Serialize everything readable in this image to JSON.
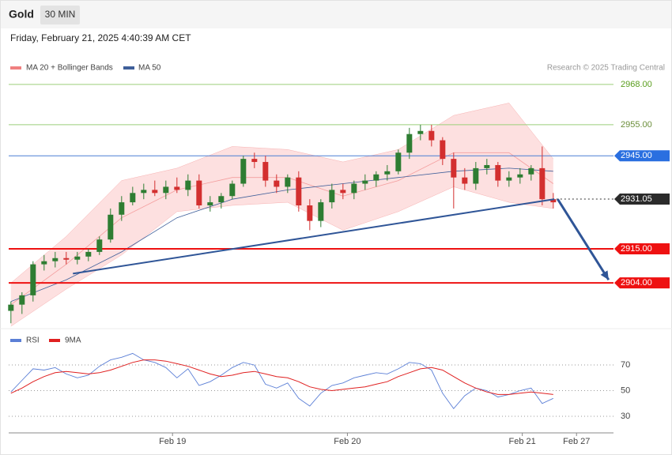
{
  "chart_data": {
    "type": "candlestick",
    "title": "Gold",
    "timeframe": "30 MIN",
    "subtitle": "Friday, February 21, 2025 4:40:39 AM CET",
    "credit": "Research © 2025 Trading Central",
    "xlim": [
      -0.2,
      54.44
    ],
    "xticks": [
      {
        "value": 14.6,
        "label": "Feb 19"
      },
      {
        "value": 30.4,
        "label": "Feb 20"
      },
      {
        "value": 46.2,
        "label": "Feb 21"
      },
      {
        "value": 51.1,
        "label": "Feb 27"
      }
    ],
    "ylim": [
      2890.8,
      2972.3
    ],
    "up_color": "#2e7d32",
    "down_color": "#d32f2f",
    "x": [
      0,
      1,
      2,
      3,
      4,
      5,
      6,
      7,
      8,
      9,
      10,
      11,
      12,
      13,
      14,
      15,
      16,
      17,
      18,
      19,
      20,
      21,
      22,
      23,
      24,
      25,
      26,
      27,
      28,
      29,
      30,
      31,
      32,
      33,
      34,
      35,
      36,
      37,
      38,
      39,
      40,
      41,
      42,
      43,
      44,
      45,
      46,
      47,
      48,
      49
    ],
    "open": [
      2895,
      2897,
      2900,
      2910,
      2911,
      2912,
      2911.5,
      2912.5,
      2914,
      2918,
      2926,
      2930,
      2933,
      2934,
      2933,
      2935,
      2934,
      2937,
      2929,
      2930,
      2932,
      2936,
      2944,
      2943,
      2937,
      2935,
      2938,
      2929,
      2924,
      2930,
      2934,
      2933,
      2936,
      2937,
      2939,
      2940,
      2946,
      2952,
      2953,
      2950,
      2944,
      2938,
      2936,
      2941,
      2942,
      2937,
      2938,
      2939,
      2941,
      2931
    ],
    "high": [
      2898,
      2901,
      2911,
      2913,
      2914,
      2914,
      2914,
      2915,
      2919,
      2928,
      2932,
      2935,
      2936,
      2937,
      2937,
      2938,
      2939,
      2939,
      2932,
      2933,
      2937,
      2945,
      2946,
      2945,
      2939,
      2939,
      2940,
      2931,
      2931,
      2936,
      2936,
      2937,
      2939,
      2940,
      2942,
      2947,
      2954,
      2955,
      2955,
      2951,
      2946,
      2941,
      2943,
      2944,
      2943,
      2940,
      2941,
      2942,
      2948,
      2933
    ],
    "low": [
      2891,
      2894,
      2898,
      2908,
      2909,
      2910,
      2910,
      2911,
      2913,
      2917,
      2924,
      2929,
      2931,
      2932,
      2931,
      2933,
      2932,
      2928,
      2927,
      2928,
      2931,
      2935,
      2941,
      2935,
      2933,
      2933,
      2927,
      2921,
      2922,
      2928,
      2931,
      2931,
      2934,
      2935,
      2937,
      2939,
      2944,
      2950,
      2948,
      2942,
      2928,
      2934,
      2934,
      2939,
      2935,
      2935,
      2936,
      2937,
      2929,
      2928
    ],
    "close": [
      2897,
      2900,
      2910,
      2911,
      2912,
      2911.5,
      2912.5,
      2914,
      2918,
      2926,
      2930,
      2933,
      2934,
      2933,
      2935,
      2934,
      2937,
      2929,
      2930,
      2932,
      2936,
      2944,
      2943,
      2937,
      2935,
      2938,
      2929,
      2924,
      2930,
      2934,
      2933,
      2936,
      2937,
      2939,
      2940,
      2946,
      2952,
      2953,
      2950,
      2944,
      2938,
      2936,
      2941,
      2942,
      2937,
      2938,
      2939,
      2941,
      2931,
      2930
    ],
    "bands": {
      "name": "MA 20 + Bollinger Bands",
      "color": "#f08080",
      "fill": "#fde0e0",
      "x": [
        0,
        5,
        10,
        15,
        20,
        25,
        30,
        35,
        40,
        45,
        49
      ],
      "upper": [
        2904,
        2919,
        2937,
        2941,
        2948,
        2947,
        2943,
        2947,
        2958,
        2962,
        2944
      ],
      "middle": [
        2897,
        2910,
        2925,
        2934,
        2938,
        2938,
        2932,
        2937,
        2946,
        2946,
        2936
      ],
      "lower": [
        2890,
        2902,
        2913,
        2927,
        2929,
        2930,
        2921,
        2927,
        2935,
        2930,
        2928
      ]
    },
    "ma50": {
      "name": "MA 50",
      "color": "#3f5f9a",
      "x": [
        0,
        5,
        10,
        15,
        20,
        25,
        30,
        35,
        40,
        45,
        49
      ],
      "values": [
        2898,
        2905,
        2914,
        2925,
        2931,
        2934,
        2936,
        2938,
        2940,
        2941,
        2940
      ]
    },
    "trendline": {
      "color": "#2f5597",
      "x": [
        5.6,
        49.1
      ],
      "values": [
        2907,
        2931
      ]
    },
    "arrow": {
      "color": "#2f5597",
      "x": [
        49.4,
        54
      ],
      "values": [
        2931,
        2905
      ]
    },
    "levels": [
      {
        "value": 2968,
        "label": "2968.00",
        "color": "#9bcf7a",
        "text_color": "#5a9e1e",
        "style": "solid",
        "box": false
      },
      {
        "value": 2955,
        "label": "2955.00",
        "color": "#9bcf7a",
        "text_color": "#6b8e3a",
        "style": "solid",
        "box": false
      },
      {
        "value": 2945,
        "label": "2945.00",
        "color": "#4a7fd4",
        "text_color": "#ffffff",
        "style": "solid",
        "box": "#2a6fe0"
      },
      {
        "value": 2931.05,
        "label": "2931.05",
        "color": "#333333",
        "text_color": "#ffffff",
        "style": "dotted",
        "box": "#2b2b2b"
      },
      {
        "value": 2915,
        "label": "2915.00",
        "color": "#ee1111",
        "text_color": "#ffffff",
        "style": "solid",
        "box": "#ee1111"
      },
      {
        "value": 2904,
        "label": "2904.00",
        "color": "#ee1111",
        "text_color": "#ffffff",
        "style": "solid",
        "box": "#ee1111"
      }
    ],
    "rsi": {
      "ylim": [
        22,
        80.5
      ],
      "yticks": [
        30,
        50,
        70
      ],
      "series": [
        {
          "name": "RSI",
          "color": "#5b7fd6",
          "values": [
            49,
            58,
            67,
            66,
            68,
            63,
            60,
            62,
            69,
            74,
            76,
            79,
            74,
            72,
            68,
            60,
            67,
            54,
            57,
            62,
            68,
            72,
            70,
            55,
            52,
            56,
            44,
            38,
            48,
            54,
            56,
            60,
            62,
            64,
            63,
            67,
            72,
            71,
            66,
            48,
            36,
            46,
            52,
            50,
            45,
            47,
            50,
            52,
            40,
            44
          ]
        },
        {
          "name": "9MA",
          "color": "#e02020",
          "values": [
            48,
            52,
            57,
            61,
            64,
            65,
            64,
            63,
            64,
            66,
            69,
            72,
            74,
            74,
            73,
            71,
            69,
            66,
            63,
            61,
            62,
            64,
            65,
            63,
            61,
            60,
            57,
            53,
            51,
            50,
            51,
            52,
            53,
            55,
            57,
            61,
            64,
            67,
            68,
            66,
            61,
            56,
            52,
            49,
            47,
            47,
            48,
            49,
            48,
            47
          ]
        }
      ]
    }
  }
}
